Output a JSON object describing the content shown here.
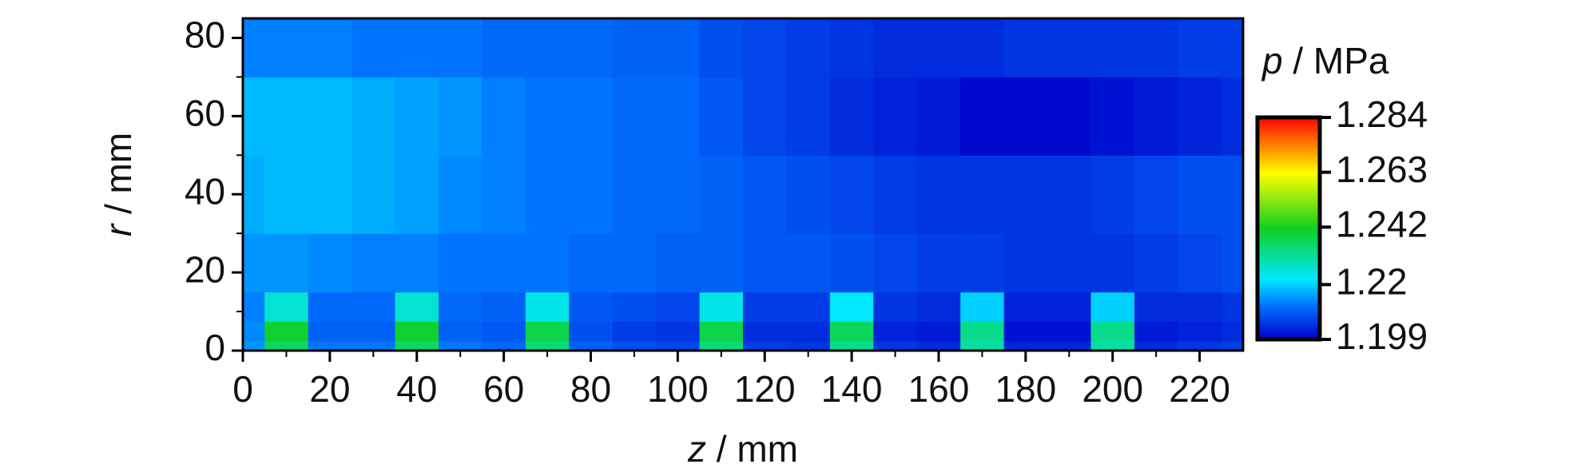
{
  "chart_data": {
    "type": "heatmap",
    "x_label": "z / mm",
    "y_label": "r / mm",
    "colorbar_label": "p / MPa",
    "x": [
      0,
      10,
      20,
      30,
      40,
      50,
      60,
      70,
      80,
      90,
      100,
      110,
      120,
      130,
      140,
      150,
      160,
      170,
      180,
      190,
      200,
      210,
      220,
      230
    ],
    "y": [
      0,
      5,
      10,
      20,
      40,
      60,
      80
    ],
    "values": [
      [
        1.215,
        1.236,
        1.212,
        1.212,
        1.236,
        1.212,
        1.211,
        1.234,
        1.21,
        1.208,
        1.207,
        1.234,
        1.206,
        1.205,
        1.232,
        1.205,
        1.204,
        1.23,
        1.203,
        1.203,
        1.23,
        1.204,
        1.205,
        1.206
      ],
      [
        1.214,
        1.24,
        1.21,
        1.21,
        1.24,
        1.21,
        1.209,
        1.238,
        1.208,
        1.206,
        1.205,
        1.238,
        1.204,
        1.204,
        1.236,
        1.203,
        1.202,
        1.232,
        1.201,
        1.201,
        1.232,
        1.202,
        1.203,
        1.204
      ],
      [
        1.213,
        1.226,
        1.211,
        1.211,
        1.226,
        1.211,
        1.21,
        1.224,
        1.209,
        1.208,
        1.207,
        1.224,
        1.206,
        1.206,
        1.222,
        1.205,
        1.204,
        1.22,
        1.203,
        1.203,
        1.22,
        1.204,
        1.204,
        1.205
      ],
      [
        1.215,
        1.215,
        1.214,
        1.213,
        1.213,
        1.212,
        1.212,
        1.212,
        1.211,
        1.211,
        1.21,
        1.21,
        1.209,
        1.209,
        1.208,
        1.207,
        1.206,
        1.206,
        1.205,
        1.205,
        1.205,
        1.206,
        1.207,
        1.208
      ],
      [
        1.217,
        1.218,
        1.218,
        1.217,
        1.216,
        1.214,
        1.213,
        1.212,
        1.212,
        1.211,
        1.211,
        1.21,
        1.209,
        1.208,
        1.207,
        1.206,
        1.205,
        1.205,
        1.205,
        1.205,
        1.206,
        1.207,
        1.208,
        1.208
      ],
      [
        1.218,
        1.218,
        1.218,
        1.217,
        1.216,
        1.215,
        1.213,
        1.212,
        1.212,
        1.211,
        1.211,
        1.209,
        1.207,
        1.206,
        1.204,
        1.203,
        1.202,
        1.2,
        1.2,
        1.2,
        1.201,
        1.202,
        1.203,
        1.204
      ],
      [
        1.213,
        1.213,
        1.213,
        1.212,
        1.212,
        1.212,
        1.211,
        1.211,
        1.211,
        1.21,
        1.21,
        1.208,
        1.207,
        1.206,
        1.205,
        1.204,
        1.204,
        1.204,
        1.205,
        1.205,
        1.205,
        1.205,
        1.206,
        1.206
      ]
    ],
    "xlim": [
      0,
      230
    ],
    "xticks": [
      0,
      20,
      40,
      60,
      80,
      100,
      120,
      140,
      160,
      180,
      200,
      220
    ],
    "ylim": [
      0,
      85
    ],
    "yticks": [
      0,
      20,
      40,
      60,
      80
    ],
    "clim": [
      1.199,
      1.284
    ],
    "cticks": [
      1.199,
      1.22,
      1.242,
      1.263,
      1.284
    ],
    "colorscale": [
      [
        0,
        "#0000c8"
      ],
      [
        0.15,
        "#0070ff"
      ],
      [
        0.27,
        "#00e8ff"
      ],
      [
        0.5,
        "#10d020"
      ],
      [
        0.75,
        "#ffff00"
      ],
      [
        1,
        "#ff0000"
      ]
    ]
  }
}
